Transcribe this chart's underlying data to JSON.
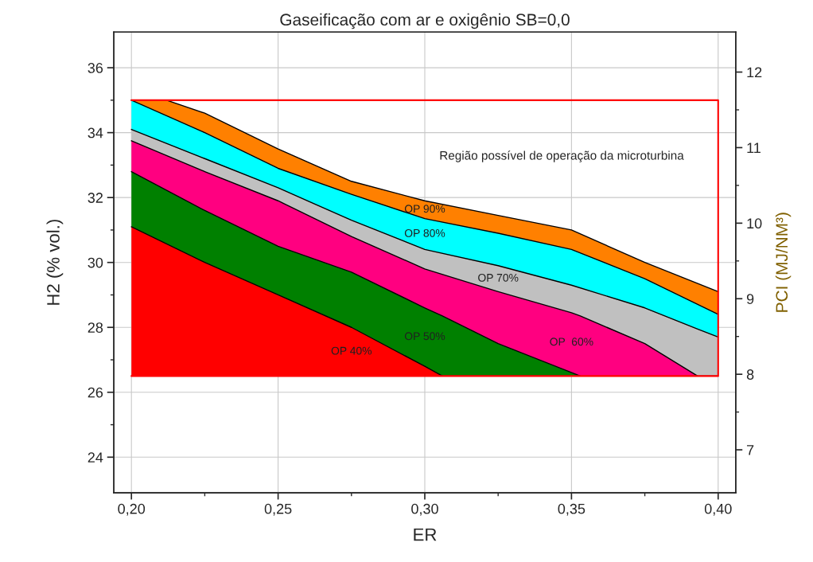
{
  "chart_data": {
    "type": "area",
    "title": "Gaseificação com ar e oxigênio SB=0,0",
    "xlabel": "ER",
    "ylabel": "H2 (% vol.)",
    "y2label": "PCI (MJ/NM³)",
    "xlim": [
      0.194,
      0.406
    ],
    "xticks": [
      {
        "value": 0.2,
        "label": "0,20"
      },
      {
        "value": 0.225,
        "label": null
      },
      {
        "value": 0.25,
        "label": "0,25"
      },
      {
        "value": 0.275,
        "label": null
      },
      {
        "value": 0.3,
        "label": "0,30"
      },
      {
        "value": 0.325,
        "label": null
      },
      {
        "value": 0.35,
        "label": "0,35"
      },
      {
        "value": 0.375,
        "label": null
      },
      {
        "value": 0.4,
        "label": "0,40"
      }
    ],
    "ylim": [
      22.9,
      37.1
    ],
    "yticks": [
      24,
      {
        "value": 25,
        "label": null
      },
      26,
      {
        "value": 27,
        "label": null
      },
      28,
      {
        "value": 29,
        "label": null
      },
      30,
      {
        "value": 31,
        "label": null
      },
      32,
      {
        "value": 33,
        "label": null
      },
      34,
      {
        "value": 35,
        "label": null
      },
      36
    ],
    "y2lim": [
      6.43,
      12.53
    ],
    "y2ticks": [
      7,
      {
        "value": 7.5,
        "label": null
      },
      8,
      {
        "value": 8.5,
        "label": null
      },
      9,
      {
        "value": 9.5,
        "label": null
      },
      10,
      {
        "value": 10.5,
        "label": null
      },
      11,
      {
        "value": 11.5,
        "label": null
      },
      12
    ],
    "grid": true,
    "series": [
      {
        "name": "OP 90%",
        "color": "#ff8000",
        "x": [
          0.2,
          0.212,
          0.225,
          0.25,
          0.275,
          0.3,
          0.325,
          0.35,
          0.375,
          0.4
        ],
        "values": [
          35,
          35,
          34.6,
          33.5,
          32.5,
          31.9,
          31.45,
          31.0,
          30.0,
          29.1
        ]
      },
      {
        "name": "OP 80%",
        "color": "#00ffff",
        "x": [
          0.2,
          0.225,
          0.25,
          0.275,
          0.3,
          0.325,
          0.35,
          0.375,
          0.4
        ],
        "values": [
          35,
          34.0,
          32.9,
          32.1,
          31.35,
          30.9,
          30.4,
          29.5,
          28.4
        ]
      },
      {
        "name": "OP 70%",
        "color": "#c0c0c0",
        "x": [
          0.2,
          0.225,
          0.25,
          0.275,
          0.3,
          0.325,
          0.35,
          0.375,
          0.393,
          0.4
        ],
        "values": [
          34.1,
          33.2,
          32.3,
          31.3,
          30.4,
          29.9,
          29.3,
          28.6,
          27.95,
          27.7
        ]
      },
      {
        "name": "OP  60%",
        "color": "#ff0080",
        "x": [
          0.2,
          0.225,
          0.25,
          0.275,
          0.3,
          0.325,
          0.35,
          0.353,
          0.375,
          0.393,
          0.4
        ],
        "values": [
          33.75,
          32.8,
          31.9,
          30.8,
          29.8,
          29.1,
          28.45,
          28.35,
          27.5,
          26.5,
          26.5
        ]
      },
      {
        "name": "OP 50%",
        "color": "#008000",
        "x": [
          0.2,
          0.225,
          0.25,
          0.275,
          0.3,
          0.306,
          0.325,
          0.353
        ],
        "values": [
          32.8,
          31.6,
          30.5,
          29.7,
          28.6,
          28.35,
          27.5,
          26.5
        ]
      },
      {
        "name": "OP 40%",
        "color": "#ff0000",
        "x": [
          0.2,
          0.225,
          0.25,
          0.275,
          0.3,
          0.306
        ],
        "values": [
          31.1,
          30.0,
          29.0,
          28.0,
          26.8,
          26.5
        ]
      },
      {
        "type": "line",
        "color": "#ff0000",
        "x": [
          0.2,
          0.4,
          0.4,
          0.2
        ],
        "values": [
          35,
          35,
          26.5,
          26.5
        ]
      }
    ],
    "annotations": [
      "Região possível de operação da microturbina"
    ]
  }
}
